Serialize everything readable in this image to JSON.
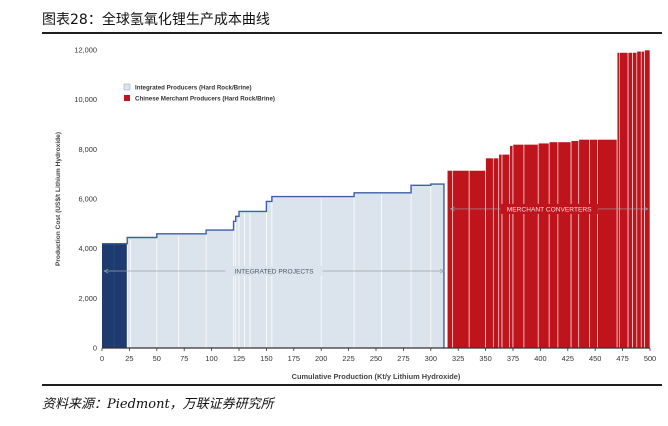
{
  "figure": {
    "title": "图表28：全球氢氧化锂生产成本曲线",
    "source": "资料来源：Piedmont，万联证券研究所"
  },
  "chart_data": {
    "type": "area",
    "title": "",
    "xlabel": "Cumulative Production (Kt/y Lithium Hydroxide)",
    "ylabel": "Production Cost (US$/t Lithium Hydroxide)",
    "xlim": [
      0,
      500
    ],
    "ylim": [
      0,
      12000
    ],
    "xticks": [
      "0",
      "25",
      "50",
      "75",
      "100",
      "125",
      "150",
      "175",
      "200",
      "225",
      "250",
      "275",
      "300",
      "325",
      "350",
      "375",
      "400",
      "425",
      "450",
      "475",
      "500"
    ],
    "yticks": [
      "0",
      "2,000",
      "4,000",
      "6,000",
      "8,000",
      "10,000",
      "12,000"
    ],
    "grid": false,
    "legend_position": "top-left",
    "colors": {
      "integrated_fill": "#dbe3ec",
      "integrated_line": "#3d5fa8",
      "first_producer": "#1e3a6e",
      "merchant_fill": "#c0141d",
      "segment_separator": "#ffffff",
      "annotation": "#9aa0a8"
    },
    "series": [
      {
        "name": "Integrated Producers (Hard Rock/Brine)",
        "segments": [
          {
            "x": [
              0,
              11
            ],
            "y": 4200
          },
          {
            "x": [
              11,
              23
            ],
            "y": 4200
          },
          {
            "x": [
              23,
              26
            ],
            "y": 4450
          },
          {
            "x": [
              26,
              50
            ],
            "y": 4450
          },
          {
            "x": [
              50,
              70
            ],
            "y": 4600
          },
          {
            "x": [
              70,
              95
            ],
            "y": 4600
          },
          {
            "x": [
              95,
              120
            ],
            "y": 4750
          },
          {
            "x": [
              120,
              122
            ],
            "y": 5100
          },
          {
            "x": [
              122,
              125
            ],
            "y": 5300
          },
          {
            "x": [
              125,
              130
            ],
            "y": 5500
          },
          {
            "x": [
              130,
              135
            ],
            "y": 5500
          },
          {
            "x": [
              135,
              150
            ],
            "y": 5500
          },
          {
            "x": [
              150,
              155
            ],
            "y": 5900
          },
          {
            "x": [
              155,
              200
            ],
            "y": 6100
          },
          {
            "x": [
              200,
              230
            ],
            "y": 6100
          },
          {
            "x": [
              230,
              255
            ],
            "y": 6250
          },
          {
            "x": [
              255,
              282
            ],
            "y": 6250
          },
          {
            "x": [
              282,
              300
            ],
            "y": 6550
          },
          {
            "x": [
              300,
              312
            ],
            "y": 6600
          }
        ]
      },
      {
        "name": "Chinese Merchant Producers (Hard Rock/Brine)",
        "segments": [
          {
            "x": [
              315,
              320
            ],
            "y": 7150
          },
          {
            "x": [
              320,
              335
            ],
            "y": 7150
          },
          {
            "x": [
              335,
              350
            ],
            "y": 7150
          },
          {
            "x": [
              350,
              357
            ],
            "y": 7650
          },
          {
            "x": [
              357,
              362
            ],
            "y": 7650
          },
          {
            "x": [
              362,
              365
            ],
            "y": 7800
          },
          {
            "x": [
              365,
              372
            ],
            "y": 7800
          },
          {
            "x": [
              372,
              375
            ],
            "y": 8150
          },
          {
            "x": [
              375,
              385
            ],
            "y": 8200
          },
          {
            "x": [
              385,
              398
            ],
            "y": 8200
          },
          {
            "x": [
              398,
              408
            ],
            "y": 8250
          },
          {
            "x": [
              408,
              416
            ],
            "y": 8300
          },
          {
            "x": [
              416,
              428
            ],
            "y": 8300
          },
          {
            "x": [
              428,
              435
            ],
            "y": 8350
          },
          {
            "x": [
              435,
              445
            ],
            "y": 8400
          },
          {
            "x": [
              445,
              452
            ],
            "y": 8400
          },
          {
            "x": [
              452,
              470
            ],
            "y": 8400
          },
          {
            "x": [
              470,
              472
            ],
            "y": 11900
          },
          {
            "x": [
              472,
              480
            ],
            "y": 11900
          },
          {
            "x": [
              480,
              484
            ],
            "y": 11900
          },
          {
            "x": [
              484,
              488
            ],
            "y": 11900
          },
          {
            "x": [
              488,
              492
            ],
            "y": 11950
          },
          {
            "x": [
              492,
              495
            ],
            "y": 11950
          },
          {
            "x": [
              495,
              500
            ],
            "y": 12000
          }
        ]
      }
    ],
    "annotations": [
      {
        "label": "INTEGRATED PROJECTS",
        "x_range": [
          2,
          312
        ],
        "y": 3100
      },
      {
        "label": "MERCHANT CONVERTERS",
        "x_range": [
          318,
          498
        ],
        "y": 5600
      }
    ]
  }
}
